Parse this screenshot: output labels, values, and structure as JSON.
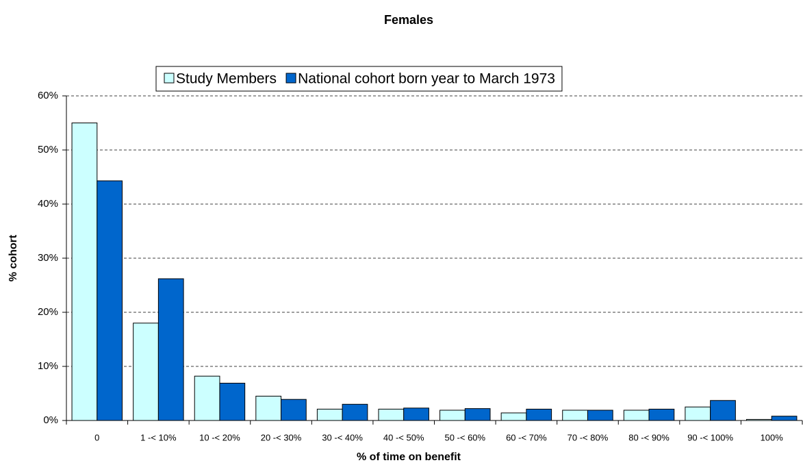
{
  "chart_data": {
    "type": "bar",
    "title": "Females",
    "xlabel": "% of time on benefit",
    "ylabel": "% cohort",
    "categories": [
      "0",
      "1 -< 10%",
      "10 -< 20%",
      "20 -< 30%",
      "30 -< 40%",
      "40 -< 50%",
      "50 -< 60%",
      "60 -< 70%",
      "70 -< 80%",
      "80 -< 90%",
      "90 -< 100%",
      "100%"
    ],
    "series": [
      {
        "name": "Study Members",
        "color": "#ccffff",
        "values": [
          55,
          18,
          8.2,
          4.5,
          2.1,
          2.1,
          1.9,
          1.4,
          1.9,
          1.9,
          2.5,
          0.2
        ]
      },
      {
        "name": "National cohort born year to March 1973",
        "color": "#0066cc",
        "values": [
          44.3,
          26.2,
          6.9,
          3.9,
          3.0,
          2.3,
          2.2,
          2.1,
          1.9,
          2.1,
          3.7,
          0.8
        ]
      }
    ],
    "ylim": [
      0,
      60
    ],
    "yticks": [
      {
        "value": 0,
        "label": "0%"
      },
      {
        "value": 10,
        "label": "10%"
      },
      {
        "value": 20,
        "label": "20%"
      },
      {
        "value": 30,
        "label": "30%"
      },
      {
        "value": 40,
        "label": "40%"
      },
      {
        "value": 50,
        "label": "50%"
      },
      {
        "value": 60,
        "label": "60%"
      }
    ],
    "grid": true,
    "legend": "top"
  }
}
